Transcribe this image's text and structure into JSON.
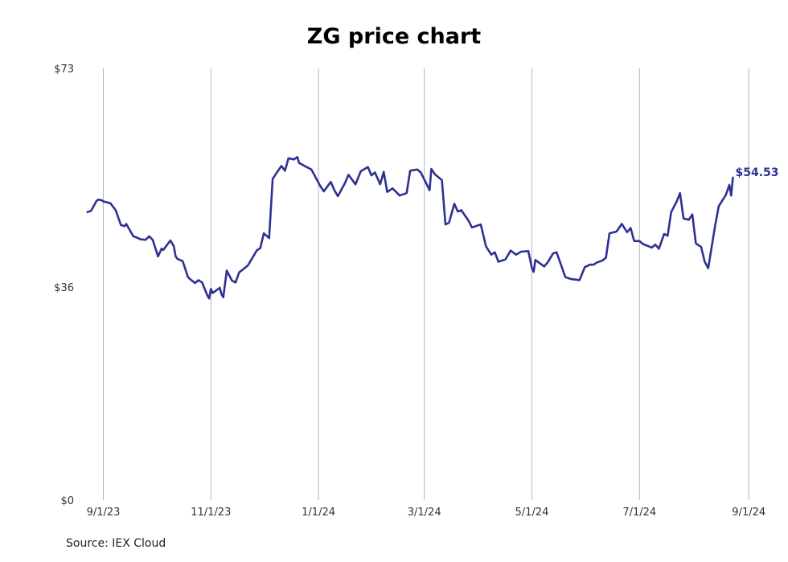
{
  "title": "ZG price chart",
  "source": "Source: IEX Cloud",
  "colors": {
    "line": "#2e3192",
    "grid": "#b3b3b3",
    "background": "#ffffff"
  },
  "chart_data": {
    "type": "line",
    "title": "ZG price chart",
    "xlabel": "",
    "ylabel": "",
    "ylim": [
      0,
      73
    ],
    "xlim": [
      "2023-08-19",
      "2024-09-05"
    ],
    "grid": {
      "x": true,
      "y": false
    },
    "legend": "none",
    "y_ticks": [
      {
        "value": 0,
        "label": "$0"
      },
      {
        "value": 36,
        "label": "$36"
      },
      {
        "value": 73,
        "label": "$73"
      }
    ],
    "x_ticks": [
      {
        "date": "2023-09-01",
        "label": "9/1/23"
      },
      {
        "date": "2023-11-01",
        "label": "11/1/23"
      },
      {
        "date": "2024-01-01",
        "label": "1/1/24"
      },
      {
        "date": "2024-03-01",
        "label": "3/1/24"
      },
      {
        "date": "2024-05-01",
        "label": "5/1/24"
      },
      {
        "date": "2024-07-01",
        "label": "7/1/24"
      },
      {
        "date": "2024-09-01",
        "label": "9/1/24"
      }
    ],
    "last_value_label": "$54.53",
    "series": [
      {
        "x": [
          "2023-08-23",
          "2023-08-25",
          "2023-08-28",
          "2023-08-29",
          "2023-08-31",
          "2023-09-01",
          "2023-09-05",
          "2023-09-08",
          "2023-09-11",
          "2023-09-13",
          "2023-09-14",
          "2023-09-18",
          "2023-09-20",
          "2023-09-22",
          "2023-09-25",
          "2023-09-27",
          "2023-09-29",
          "2023-10-02",
          "2023-10-04",
          "2023-10-05",
          "2023-10-09",
          "2023-10-11",
          "2023-10-12",
          "2023-10-13",
          "2023-10-16",
          "2023-10-19",
          "2023-10-20",
          "2023-10-23",
          "2023-10-25",
          "2023-10-27",
          "2023-10-30",
          "2023-10-31",
          "2023-11-01",
          "2023-11-02",
          "2023-11-06",
          "2023-11-07",
          "2023-11-08",
          "2023-11-10",
          "2023-11-13",
          "2023-11-15",
          "2023-11-17",
          "2023-11-20",
          "2023-11-22",
          "2023-11-27",
          "2023-11-29",
          "2023-12-01",
          "2023-12-04",
          "2023-12-06",
          "2023-12-08",
          "2023-12-11",
          "2023-12-13",
          "2023-12-15",
          "2023-12-18",
          "2023-12-20",
          "2023-12-21",
          "2023-12-26",
          "2023-12-28",
          "2024-01-02",
          "2024-01-04",
          "2024-01-08",
          "2024-01-10",
          "2024-01-12",
          "2024-01-16",
          "2024-01-18",
          "2024-01-22",
          "2024-01-25",
          "2024-01-29",
          "2024-01-31",
          "2024-02-02",
          "2024-02-05",
          "2024-02-07",
          "2024-02-09",
          "2024-02-12",
          "2024-02-14",
          "2024-02-16",
          "2024-02-20",
          "2024-02-22",
          "2024-02-26",
          "2024-02-28",
          "2024-03-04",
          "2024-03-05",
          "2024-03-07",
          "2024-03-11",
          "2024-03-13",
          "2024-03-15",
          "2024-03-18",
          "2024-03-20",
          "2024-03-22",
          "2024-03-26",
          "2024-03-28",
          "2024-04-02",
          "2024-04-05",
          "2024-04-08",
          "2024-04-10",
          "2024-04-12",
          "2024-04-16",
          "2024-04-19",
          "2024-04-22",
          "2024-04-25",
          "2024-04-29",
          "2024-05-01",
          "2024-05-02",
          "2024-05-03",
          "2024-05-08",
          "2024-05-10",
          "2024-05-13",
          "2024-05-15",
          "2024-05-20",
          "2024-05-23",
          "2024-05-28",
          "2024-05-31",
          "2024-06-03",
          "2024-06-05",
          "2024-06-07",
          "2024-06-10",
          "2024-06-12",
          "2024-06-14",
          "2024-06-18",
          "2024-06-21",
          "2024-06-24",
          "2024-06-26",
          "2024-06-28",
          "2024-07-01",
          "2024-07-03",
          "2024-07-08",
          "2024-07-10",
          "2024-07-12",
          "2024-07-15",
          "2024-07-17",
          "2024-07-19",
          "2024-07-22",
          "2024-07-24",
          "2024-07-26",
          "2024-07-29",
          "2024-07-31",
          "2024-08-02",
          "2024-08-05",
          "2024-08-07",
          "2024-08-09",
          "2024-08-13",
          "2024-08-15",
          "2024-08-19",
          "2024-08-21",
          "2024-08-22",
          "2024-08-23"
        ],
        "y": [
          48.7,
          48.9,
          50.5,
          50.8,
          50.7,
          50.5,
          50.2,
          49.0,
          46.5,
          46.3,
          46.7,
          44.6,
          44.4,
          44.1,
          44.0,
          44.6,
          44.0,
          41.2,
          42.5,
          42.3,
          43.9,
          42.9,
          41.2,
          40.8,
          40.4,
          37.7,
          37.4,
          36.7,
          37.2,
          36.8,
          34.6,
          34.1,
          35.7,
          35.0,
          35.9,
          34.8,
          34.3,
          38.8,
          37.1,
          36.8,
          38.5,
          39.2,
          39.7,
          42.2,
          42.6,
          45.1,
          44.3,
          54.3,
          55.2,
          56.5,
          55.7,
          57.8,
          57.6,
          58.0,
          57.0,
          56.2,
          55.9,
          53.1,
          52.2,
          53.8,
          52.4,
          51.4,
          53.6,
          55.0,
          53.4,
          55.6,
          56.3,
          54.9,
          55.4,
          53.4,
          55.5,
          52.1,
          52.7,
          52.1,
          51.5,
          51.9,
          55.7,
          55.9,
          55.4,
          52.4,
          56.0,
          55.1,
          54.1,
          46.6,
          46.9,
          50.1,
          48.8,
          49.0,
          47.3,
          46.1,
          46.6,
          42.9,
          41.5,
          41.9,
          40.3,
          40.7,
          42.2,
          41.5,
          42.0,
          42.1,
          39.2,
          38.6,
          40.6,
          39.5,
          40.2,
          41.7,
          41.9,
          37.7,
          37.4,
          37.2,
          39.4,
          39.8,
          39.8,
          40.2,
          40.5,
          41.0,
          45.1,
          45.4,
          46.7,
          45.3,
          46.0,
          43.8,
          43.8,
          43.3,
          42.7,
          43.2,
          42.5,
          45.0,
          44.7,
          48.7,
          50.4,
          51.9,
          47.6,
          47.4,
          48.3,
          43.4,
          42.8,
          40.3,
          39.2,
          46.6,
          49.7,
          51.6,
          53.3,
          51.5,
          54.53
        ]
      }
    ]
  }
}
